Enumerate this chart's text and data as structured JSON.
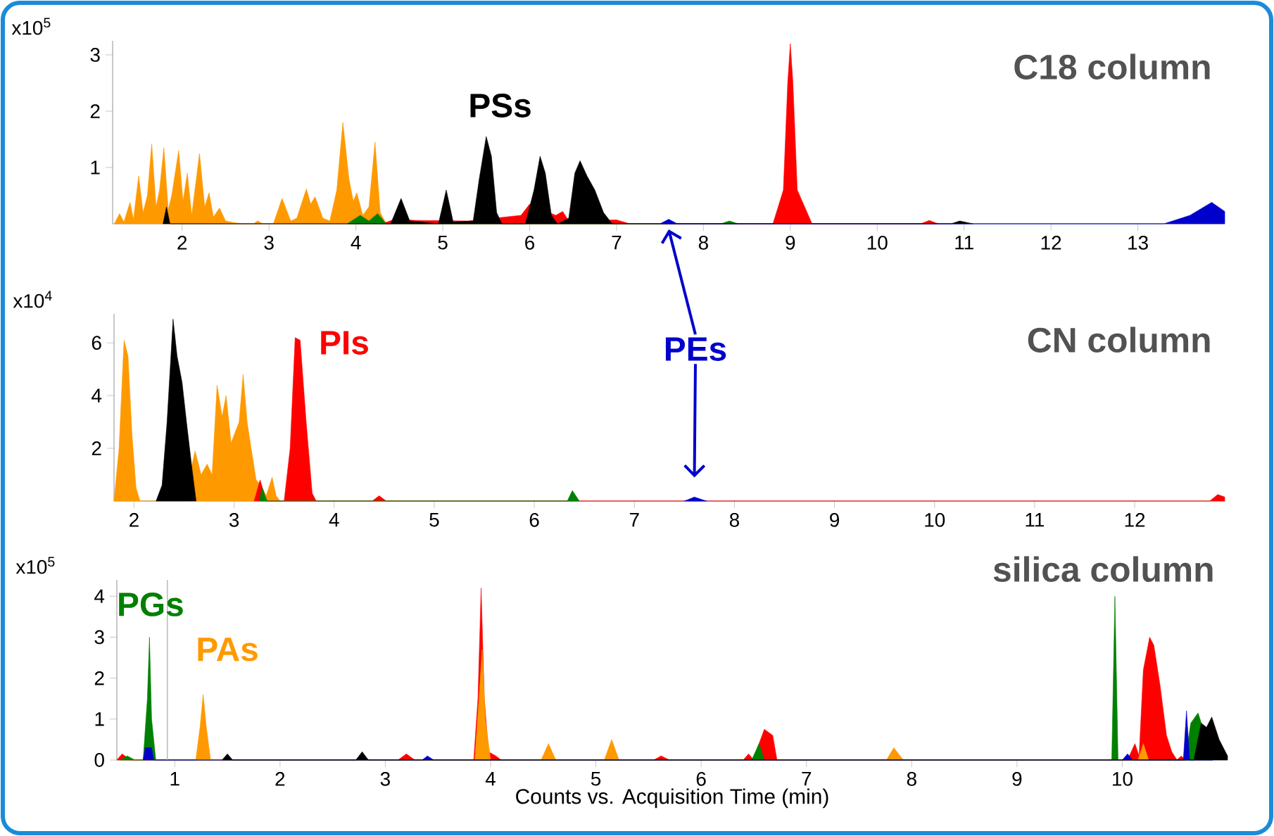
{
  "chart_data": [
    {
      "type": "area",
      "ylabel": "x10$^{5}$",
      "xlim": [
        1.2,
        14.0
      ],
      "ylim": [
        0,
        3.25
      ],
      "xticks": [
        2,
        3,
        4,
        5,
        6,
        7,
        8,
        9,
        10,
        11,
        12,
        13
      ],
      "yticks": [
        1,
        2,
        3
      ],
      "annotations": [
        "C18 column"
      ],
      "series": [
        {
          "color": "#ff9900",
          "x": [
            1.22,
            1.28,
            1.33,
            1.4,
            1.44,
            1.5,
            1.55,
            1.6,
            1.65,
            1.7,
            1.74,
            1.79,
            1.84,
            1.88,
            1.96,
            2.01,
            2.06,
            2.11,
            2.2,
            2.26,
            2.31,
            2.36,
            2.43,
            2.5,
            2.6,
            2.7,
            2.82,
            2.87,
            2.93,
            3.05,
            3.15,
            3.25,
            3.32,
            3.43,
            3.48,
            3.53,
            3.62,
            3.7,
            3.78,
            3.85,
            3.92,
            3.97,
            4.01,
            4.08,
            4.15,
            4.22,
            4.28,
            4.35
          ],
          "values": [
            0,
            0.18,
            0.03,
            0.38,
            0.08,
            0.85,
            0.2,
            0.5,
            1.42,
            0.3,
            0.6,
            1.35,
            0.25,
            0.5,
            1.3,
            0.4,
            0.9,
            0.15,
            1.25,
            0.3,
            0.55,
            0.12,
            0.28,
            0.05,
            0.02,
            0,
            0,
            0.05,
            0,
            0,
            0.45,
            0.05,
            0.1,
            0.62,
            0.35,
            0.48,
            0.1,
            0.05,
            0.6,
            1.8,
            0.8,
            0.4,
            0.55,
            0.15,
            0.3,
            1.45,
            0.2,
            0
          ]
        },
        {
          "color": "#ff0000",
          "x": [
            4.3,
            4.45,
            4.7,
            5.0,
            5.3,
            5.6,
            5.9,
            6.0,
            6.08,
            6.3,
            6.38,
            6.45,
            6.8,
            7.0,
            7.15,
            8.8,
            8.92,
            8.97,
            9.0,
            9.03,
            9.08,
            9.25,
            10.5,
            10.6,
            10.7
          ],
          "values": [
            0,
            0.08,
            0.06,
            null,
            0.05,
            null,
            0.15,
            0.35,
            null,
            0.15,
            0.22,
            0.05,
            null,
            0.07,
            0,
            0,
            0.6,
            2.5,
            3.2,
            2.5,
            0.6,
            0,
            0,
            0.06,
            0
          ]
        },
        {
          "color": "#008000",
          "x": [
            3.9,
            4.05,
            4.15,
            4.25,
            4.35,
            8.2,
            8.3,
            8.4
          ],
          "values": [
            0,
            0.15,
            0.05,
            0.18,
            0,
            0,
            0.05,
            0
          ]
        },
        {
          "name": "PSs",
          "color": "#000000",
          "x": [
            1.78,
            1.82,
            1.86,
            4.4,
            4.52,
            4.62,
            4.95,
            5.04,
            5.12,
            5.35,
            5.42,
            5.5,
            5.56,
            5.62,
            5.68,
            5.95,
            6.05,
            6.12,
            6.18,
            6.25,
            6.32,
            6.45,
            6.52,
            6.58,
            6.66,
            6.75,
            6.85,
            6.95,
            10.85,
            10.95,
            11.1
          ],
          "values": [
            0,
            0.3,
            0,
            0,
            0.45,
            0.05,
            0,
            0.6,
            0.03,
            0.05,
            0.8,
            1.55,
            1.2,
            0.2,
            0,
            0,
            0.6,
            1.2,
            0.9,
            0.15,
            0,
            0.1,
            0.9,
            1.12,
            0.85,
            0.6,
            0.2,
            0,
            0,
            0.05,
            0
          ]
        },
        {
          "color": "#0000cc",
          "x": [
            7.5,
            7.6,
            7.7,
            13.3,
            13.6,
            13.85,
            14.0
          ],
          "values": [
            0,
            0.08,
            0,
            0,
            0.15,
            0.38,
            0.22
          ]
        }
      ]
    },
    {
      "type": "area",
      "ylabel": "x10$^{4}$",
      "xlim": [
        1.8,
        12.9
      ],
      "ylim": [
        0,
        7.1
      ],
      "xticks": [
        2,
        3,
        4,
        5,
        6,
        7,
        8,
        9,
        10,
        11,
        12
      ],
      "yticks": [
        2,
        4,
        6
      ],
      "annotations": [
        "CN column"
      ],
      "series": [
        {
          "color": "#ff9900",
          "x": [
            1.8,
            1.85,
            1.9,
            1.94,
            1.98,
            2.02,
            2.06,
            2.5,
            2.55,
            2.61,
            2.67,
            2.73,
            2.78,
            2.83,
            2.88,
            2.92,
            2.97,
            3.01,
            3.05,
            3.09,
            3.13,
            3.17,
            3.22,
            3.27,
            3.32,
            3.38,
            3.42,
            3.46
          ],
          "values": [
            0,
            2.0,
            6.1,
            5.5,
            2.5,
            0.5,
            0,
            0,
            null,
            1.9,
            1.0,
            1.4,
            1.0,
            4.4,
            3.2,
            4.0,
            2.2,
            2.6,
            3.0,
            4.8,
            3.0,
            2.0,
            0.8,
            0.6,
            0.2,
            0.9,
            0.2,
            0
          ]
        },
        {
          "color": "#000000",
          "x": [
            2.22,
            2.28,
            2.33,
            2.39,
            2.43,
            2.48,
            2.53,
            2.58,
            2.62
          ],
          "values": [
            0,
            0.6,
            3.0,
            6.9,
            5.5,
            4.5,
            2.8,
            1.2,
            0
          ]
        },
        {
          "name": "PIs",
          "color": "#ff0000",
          "x": [
            3.2,
            3.26,
            3.32,
            3.5,
            3.56,
            3.61,
            3.66,
            3.72,
            3.78,
            3.82,
            4.38,
            4.45,
            4.52,
            12.75,
            12.83,
            12.9
          ],
          "values": [
            0,
            0.8,
            0,
            0,
            2.0,
            6.2,
            6.1,
            3.0,
            0.3,
            0,
            0,
            0.2,
            0,
            0,
            0.25,
            0.15
          ]
        },
        {
          "color": "#008000",
          "x": [
            3.25,
            3.28,
            3.33,
            6.33,
            6.38,
            6.45
          ],
          "values": [
            0,
            0.5,
            0,
            0,
            0.4,
            0
          ]
        },
        {
          "name": "PEs",
          "color": "#0000cc",
          "x": [
            7.5,
            7.6,
            7.72
          ],
          "values": [
            0,
            0.15,
            0
          ]
        }
      ]
    },
    {
      "type": "area",
      "ylabel": "x10$^{5}$",
      "xlabel": "Counts vs. Acquisition Time (min)",
      "xlim": [
        0.45,
        11.0
      ],
      "ylim": [
        0,
        4.4
      ],
      "xticks": [
        1,
        2,
        3,
        4,
        5,
        6,
        7,
        8,
        9,
        10
      ],
      "yticks": [
        0,
        1,
        2,
        3,
        4
      ],
      "ref_lines": [
        {
          "axis": "x",
          "value": 0.93,
          "color": "#aaaaaa"
        }
      ],
      "annotations": [
        "silica column"
      ],
      "series": [
        {
          "color": "#ff0000",
          "x": [
            0.45,
            0.5,
            0.58,
            3.12,
            3.2,
            3.28,
            3.84,
            3.88,
            3.91,
            3.94,
            3.98,
            4.05,
            4.1,
            5.55,
            5.62,
            5.7,
            6.4,
            6.45,
            6.5,
            6.55,
            6.6,
            6.68,
            6.72,
            10.05,
            10.12,
            10.16,
            10.2,
            10.26,
            10.3,
            10.36,
            10.42,
            10.47,
            10.52,
            10.56,
            10.6
          ],
          "values": [
            0,
            0.15,
            0,
            0,
            0.15,
            0,
            0,
            1.5,
            4.2,
            1.5,
            0.2,
            0.1,
            0,
            0,
            0.1,
            0,
            0,
            0.15,
            0,
            0.4,
            0.75,
            0.6,
            0,
            0,
            0.4,
            0.1,
            2.2,
            3.0,
            2.8,
            1.8,
            0.6,
            0.2,
            0,
            0.1,
            0
          ]
        },
        {
          "name": "PGs",
          "color": "#008000",
          "x": [
            0.48,
            0.55,
            0.62,
            0.7,
            0.74,
            0.76,
            0.78,
            0.82,
            3.85,
            3.92,
            3.98,
            6.48,
            6.55,
            6.6,
            9.9,
            9.93,
            9.96,
            10.6,
            10.65,
            10.72,
            10.8,
            10.86
          ],
          "values": [
            0,
            0.1,
            0,
            0,
            1.5,
            3.0,
            1.0,
            0,
            0,
            null,
            0,
            0,
            0.4,
            0,
            0,
            4.0,
            0,
            0,
            0.9,
            1.15,
            null,
            0
          ]
        },
        {
          "name": "PAs",
          "color": "#ff9900",
          "x": [
            1.2,
            1.24,
            1.27,
            1.3,
            1.34,
            3.85,
            3.89,
            3.92,
            3.95,
            4.0,
            4.48,
            4.55,
            4.62,
            5.08,
            5.15,
            5.22,
            7.76,
            7.83,
            7.92,
            10.15,
            10.2,
            10.25
          ],
          "values": [
            0,
            0.8,
            1.6,
            0.8,
            0,
            0,
            1.5,
            2.7,
            1.0,
            0,
            0,
            0.4,
            0,
            0,
            0.5,
            0,
            0,
            0.3,
            0,
            0,
            0.4,
            0
          ]
        },
        {
          "color": "#0000cc",
          "x": [
            0.7,
            0.72,
            0.78,
            0.8,
            3.35,
            3.4,
            3.46,
            10.0,
            10.05,
            10.1,
            10.58,
            10.61,
            10.64,
            10.75,
            10.8,
            10.86
          ],
          "values": [
            0,
            0.3,
            0.3,
            0,
            0,
            0.1,
            0,
            0,
            0.15,
            0,
            0,
            1.2,
            0,
            0,
            null,
            0
          ]
        },
        {
          "color": "#000000",
          "x": [
            1.45,
            1.5,
            1.55,
            2.72,
            2.78,
            2.84,
            10.68,
            10.75,
            10.8,
            10.85,
            10.92,
            11.0
          ],
          "values": [
            0,
            0.15,
            0,
            0,
            0.2,
            0,
            0,
            0.9,
            0.8,
            1.05,
            0.5,
            0.1
          ]
        }
      ]
    }
  ]
}
